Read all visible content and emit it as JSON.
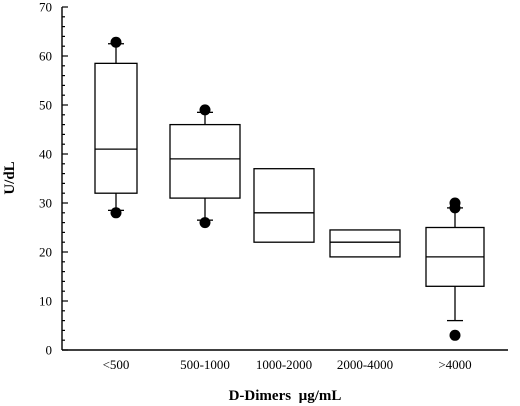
{
  "chart_data": {
    "type": "box",
    "xlabel": "D-Dimers  µg/mL",
    "ylabel": "U/dL",
    "ylim": [
      0,
      70
    ],
    "yticks": [
      0,
      10,
      20,
      30,
      40,
      50,
      60,
      70
    ],
    "grid": false,
    "categories": [
      "<500",
      "500-1000",
      "1000-2000",
      "2000-4000",
      ">4000"
    ],
    "boxes": [
      {
        "whisker_low": 28.5,
        "q1": 32,
        "median": 41,
        "q3": 58.5,
        "whisker_high": 62.5,
        "outliers": [
          28,
          62.8
        ]
      },
      {
        "whisker_low": 26.5,
        "q1": 31,
        "median": 39,
        "q3": 46,
        "whisker_high": 48.5,
        "outliers": [
          26,
          49
        ]
      },
      {
        "whisker_low": null,
        "q1": 22,
        "median": 28,
        "q3": 37,
        "whisker_high": null,
        "outliers": []
      },
      {
        "whisker_low": null,
        "q1": 19,
        "median": 22,
        "q3": 24.5,
        "whisker_high": null,
        "outliers": []
      },
      {
        "whisker_low": 6,
        "q1": 13,
        "median": 19,
        "q3": 25,
        "whisker_high": 29,
        "outliers": [
          3,
          29,
          30
        ]
      }
    ]
  }
}
